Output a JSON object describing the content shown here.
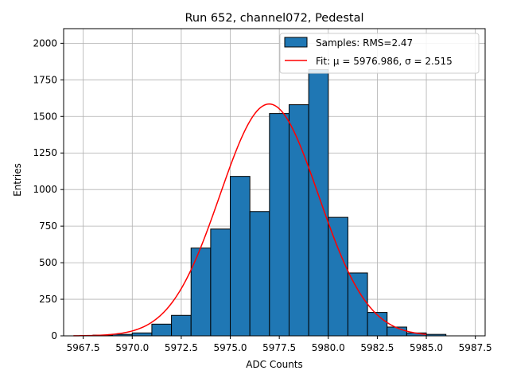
{
  "chart_data": {
    "type": "bar",
    "title": "Run 652, channel072, Pedestal",
    "xlabel": "ADC Counts",
    "ylabel": "Entries",
    "xlim": [
      5966.5,
      5988.0
    ],
    "ylim": [
      0,
      2100
    ],
    "xticks": [
      "5967.5",
      "5970.0",
      "5972.5",
      "5975.0",
      "5977.5",
      "5980.0",
      "5982.5",
      "5985.0",
      "5987.5"
    ],
    "xtick_values": [
      5967.5,
      5970.0,
      5972.5,
      5975.0,
      5977.5,
      5980.0,
      5982.5,
      5985.0,
      5987.5
    ],
    "yticks": [
      "0",
      "250",
      "500",
      "750",
      "1000",
      "1250",
      "1500",
      "1750",
      "2000"
    ],
    "ytick_values": [
      0,
      250,
      500,
      750,
      1000,
      1250,
      1500,
      1750,
      2000
    ],
    "grid": true,
    "legend_position": "top-right",
    "histogram": {
      "name": "Samples",
      "bin_edges": [
        5967.0,
        5968.0,
        5969.0,
        5970.0,
        5971.0,
        5972.0,
        5973.0,
        5974.0,
        5975.0,
        5976.0,
        5977.0,
        5978.0,
        5979.0,
        5980.0,
        5981.0,
        5982.0,
        5983.0,
        5984.0,
        5985.0,
        5986.0,
        5987.0,
        5988.0
      ],
      "values": [
        0,
        5,
        10,
        20,
        80,
        140,
        600,
        730,
        1090,
        850,
        1520,
        1580,
        1820,
        810,
        430,
        160,
        60,
        20,
        10,
        0,
        0
      ],
      "color": "#1f77b4",
      "edgecolor": "#000000"
    },
    "fit": {
      "mu": 5976.986,
      "sigma": 2.515,
      "amplitude": 1585,
      "x_range": [
        5967.0,
        5985.0
      ],
      "color": "#ff0000"
    },
    "legend": [
      {
        "label": "Samples: RMS=2.47",
        "kind": "patch",
        "color": "#1f77b4"
      },
      {
        "label": "Fit: μ = 5976.986, σ = 2.515",
        "kind": "line",
        "color": "#ff0000"
      }
    ]
  }
}
